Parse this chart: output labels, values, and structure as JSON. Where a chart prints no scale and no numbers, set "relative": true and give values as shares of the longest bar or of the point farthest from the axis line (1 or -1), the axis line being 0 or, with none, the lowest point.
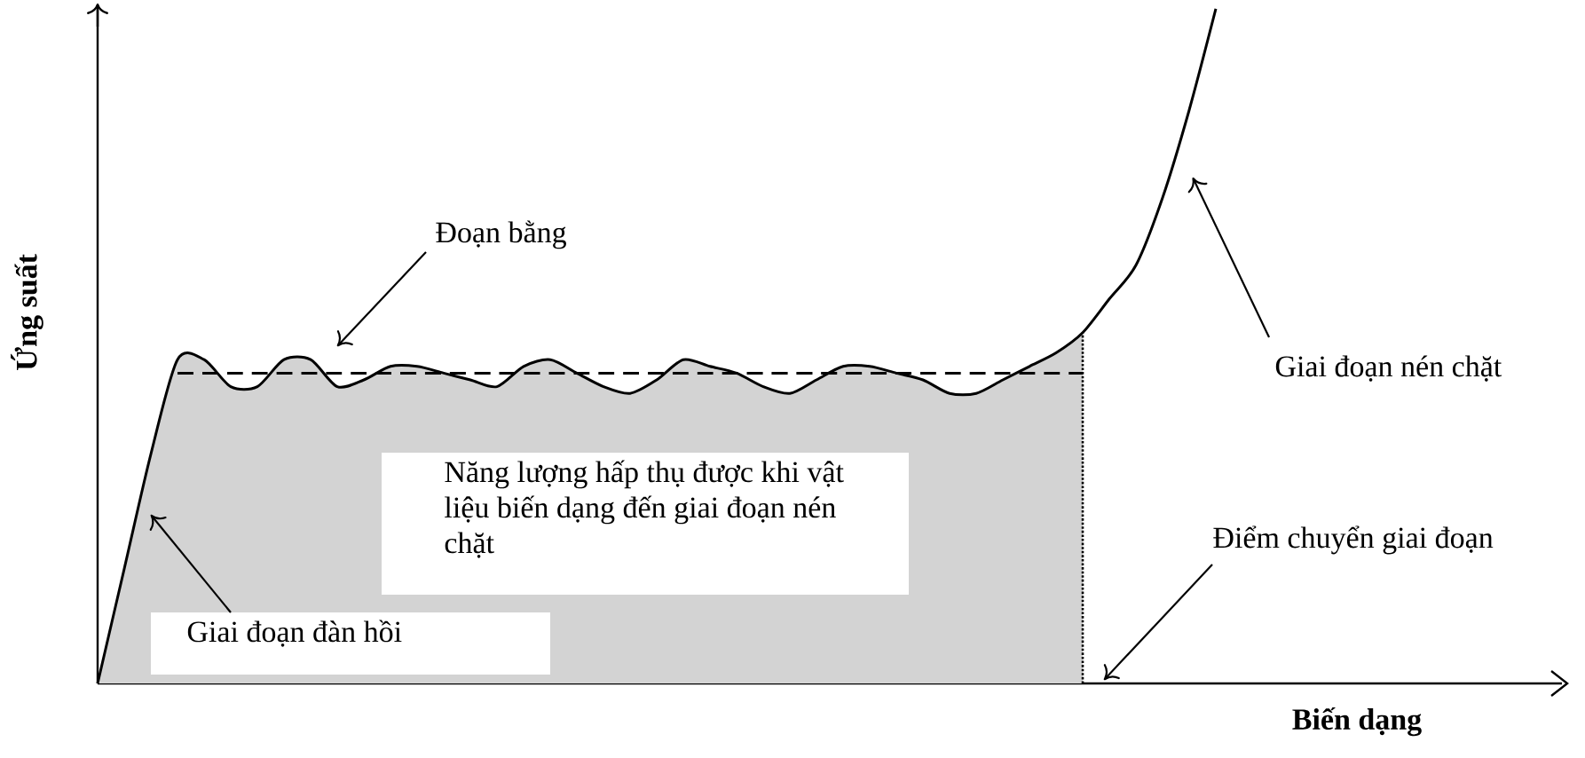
{
  "chart_data": {
    "type": "line",
    "relative": true,
    "xlabel": "Biến dạng",
    "ylabel": "Ứng suất",
    "categories": [
      null,
      null,
      null,
      null,
      null,
      null,
      null,
      null,
      null,
      null,
      null,
      null,
      null,
      null,
      null,
      null,
      null,
      null,
      null,
      null,
      null,
      null,
      null,
      null,
      null,
      null,
      null,
      null,
      null,
      null,
      null,
      null,
      null,
      null,
      null,
      null,
      null,
      null,
      null,
      null,
      null,
      null,
      null,
      null,
      null,
      null,
      null,
      null,
      null,
      null,
      null,
      null,
      null,
      null,
      null,
      null
    ],
    "series": [
      {
        "type": "area",
        "color": "#d3d3d3",
        "values": [
          0,
          0.17,
          0.34,
          0.48,
          0.48,
          0.44,
          0.44,
          0.48,
          0.48,
          0.44,
          0.45,
          0.47,
          0.47,
          0.46,
          0.45,
          0.44,
          0.47,
          0.48,
          0.46,
          0.44,
          0.43,
          0.45,
          0.48,
          0.47,
          0.46,
          0.44,
          0.43,
          0.45,
          0.47,
          0.47,
          0.46,
          0.45,
          0.43,
          0.43,
          0.45,
          0.47,
          0.49,
          0.52,
          null,
          null,
          null,
          null,
          null,
          null,
          null,
          null,
          null,
          null,
          null,
          null,
          null,
          null,
          null,
          null,
          null,
          null
        ]
      },
      {
        "type": "line",
        "color": "#000000",
        "line_style": "dashed",
        "values": [
          null,
          null,
          null,
          0.46,
          0.46,
          0.46,
          0.46,
          0.46,
          0.46,
          0.46,
          0.46,
          0.46,
          0.46,
          0.46,
          0.46,
          0.46,
          0.46,
          0.46,
          0.46,
          0.46,
          0.46,
          0.46,
          0.46,
          0.46,
          0.46,
          0.46,
          0.46,
          0.46,
          0.46,
          0.46,
          0.46,
          0.46,
          0.46,
          0.46,
          0.46,
          0.46,
          0.46,
          0.46,
          null,
          null,
          null,
          null,
          null,
          null,
          null,
          null,
          null,
          null,
          null,
          null,
          null,
          null,
          null,
          null,
          null,
          null
        ]
      },
      {
        "color": "#000000",
        "line_style": "solid",
        "values": [
          0,
          0.17,
          0.34,
          0.48,
          0.48,
          0.44,
          0.44,
          0.48,
          0.48,
          0.44,
          0.45,
          0.47,
          0.47,
          0.46,
          0.45,
          0.44,
          0.47,
          0.48,
          0.46,
          0.44,
          0.43,
          0.45,
          0.48,
          0.47,
          0.46,
          0.44,
          0.43,
          0.45,
          0.47,
          0.47,
          0.46,
          0.45,
          0.43,
          0.43,
          0.45,
          0.47,
          0.49,
          0.52,
          0.57,
          0.62,
          0.72,
          0.85,
          1.0,
          null,
          null,
          null,
          null,
          null,
          null,
          null,
          null,
          null,
          null,
          null,
          null,
          null
        ]
      }
    ],
    "annotations": [
      "Đoạn bằng",
      "Giai đoạn nén chặt",
      "Năng lượng hấp thụ được khi vật liệu biến dạng đến giai đoạn nén chặt",
      "Điểm chuyển giai đoạn",
      "Giai đoạn đàn hồi"
    ],
    "marker": "none"
  }
}
